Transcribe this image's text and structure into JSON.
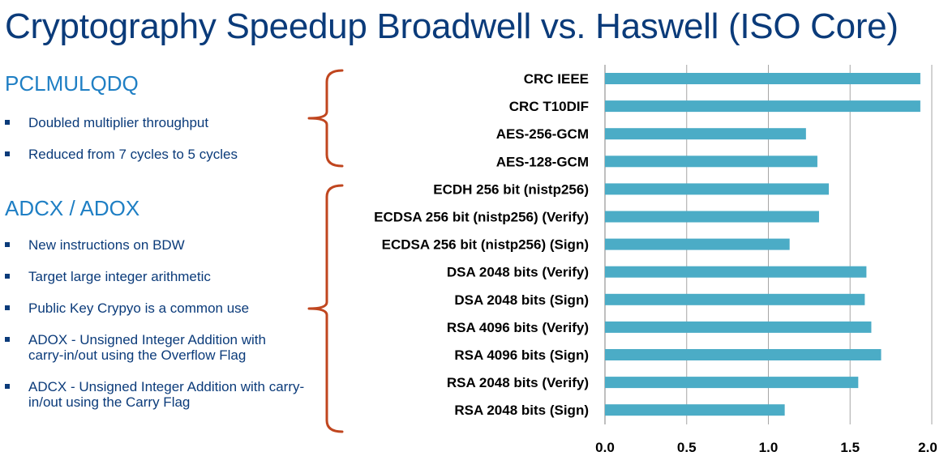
{
  "title": "Cryptography Speedup Broadwell vs. Haswell (ISO Core)",
  "sections": [
    {
      "heading": "PCLMULQDQ",
      "bullets": [
        "Doubled multiplier throughput",
        "Reduced from 7 cycles to 5 cycles"
      ]
    },
    {
      "heading": "ADCX / ADOX",
      "bullets": [
        "New instructions on BDW",
        "Target large integer arithmetic",
        "Public Key Crypyo is a common use",
        "ADOX - Unsigned Integer Addition with carry-in/out using the Overflow Flag",
        "ADCX - Unsigned Integer Addition with carry-in/out using the Carry Flag"
      ]
    }
  ],
  "chart_data": {
    "type": "bar",
    "orientation": "horizontal",
    "title": "",
    "xlabel": "",
    "ylabel": "",
    "categories": [
      "CRC IEEE",
      "CRC T10DIF",
      "AES-256-GCM",
      "AES-128-GCM",
      "ECDH 256 bit  (nistp256)",
      "ECDSA 256 bit  (nistp256) (Verify)",
      "ECDSA 256 bit  (nistp256) (Sign)",
      "DSA  2048 bits (Verify)",
      "DSA  2048 bits (Sign)",
      "RSA  4096 bits (Verify)",
      "RSA  4096 bits (Sign)",
      "RSA  2048 bits (Verify)",
      "RSA  2048 bits (Sign)"
    ],
    "values": [
      1.93,
      1.93,
      1.23,
      1.3,
      1.37,
      1.31,
      1.13,
      1.6,
      1.59,
      1.63,
      1.69,
      1.55,
      1.1
    ],
    "xlim": [
      0,
      2
    ],
    "ticks": [
      "0.0",
      "0.5",
      "1.0",
      "1.5",
      "2.0"
    ],
    "tick_values": [
      0,
      0.5,
      1,
      1.5,
      2
    ],
    "grid": true,
    "bar_color": "#4bacc6",
    "grid_color": "#a6a6a6",
    "bracket_color": "#c0461f"
  }
}
